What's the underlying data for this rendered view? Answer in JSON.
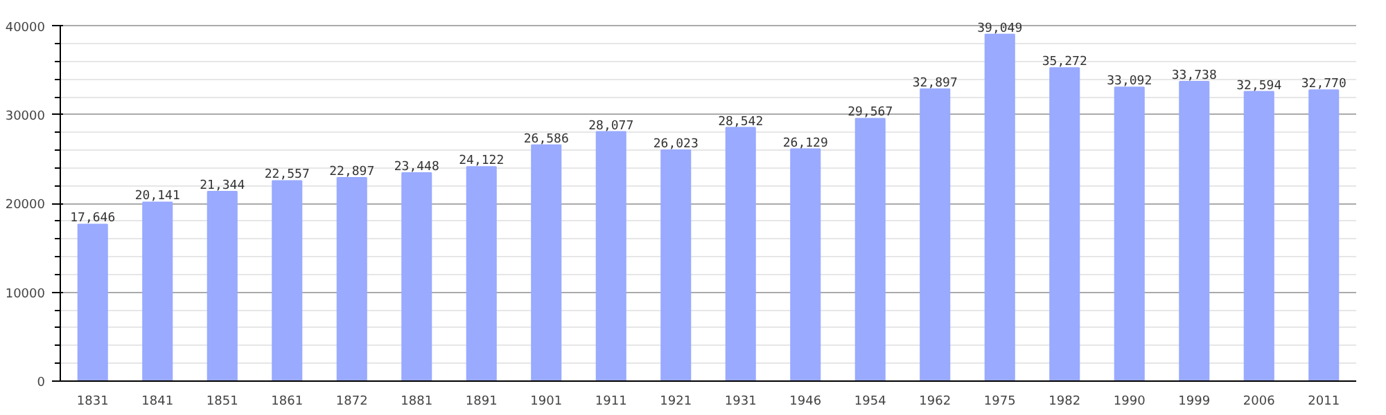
{
  "chart_data": {
    "type": "bar",
    "categories": [
      "1831",
      "1841",
      "1851",
      "1861",
      "1872",
      "1881",
      "1891",
      "1901",
      "1911",
      "1921",
      "1931",
      "1946",
      "1954",
      "1962",
      "1975",
      "1982",
      "1990",
      "1999",
      "2006",
      "2011"
    ],
    "values": [
      17646,
      20141,
      21344,
      22557,
      22897,
      23448,
      24122,
      26586,
      28077,
      26023,
      28542,
      26129,
      29567,
      32897,
      39049,
      35272,
      33092,
      33738,
      32594,
      32770
    ],
    "value_labels": [
      "17,646",
      "20,141",
      "21,344",
      "22,557",
      "22,897",
      "23,448",
      "24,122",
      "26,586",
      "28,077",
      "26,023",
      "28,542",
      "26,129",
      "29,567",
      "32,897",
      "39,049",
      "35,272",
      "33,092",
      "33,738",
      "32,594",
      "32,770"
    ],
    "color": "#99aaff",
    "ylim": [
      0,
      40000
    ],
    "yticks": [
      0,
      10000,
      20000,
      30000,
      40000
    ],
    "grid": "y"
  }
}
